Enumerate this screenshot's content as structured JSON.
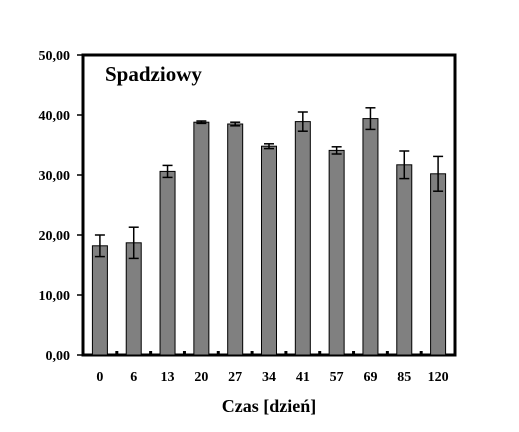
{
  "chart_data": {
    "type": "bar",
    "title": "Spadziowy",
    "xlabel": "Czas [dzień]",
    "ylabel": "",
    "ylim": [
      0,
      50
    ],
    "yticks": [
      "0,00",
      "10,00",
      "20,00",
      "30,00",
      "40,00",
      "50,00"
    ],
    "categories": [
      "0",
      "6",
      "13",
      "20",
      "27",
      "34",
      "41",
      "57",
      "69",
      "85",
      "120"
    ],
    "values": [
      18.2,
      18.7,
      30.6,
      38.8,
      38.5,
      34.8,
      38.9,
      34.1,
      39.4,
      31.7,
      30.2
    ],
    "errors": [
      1.8,
      2.6,
      1.0,
      0.2,
      0.3,
      0.4,
      1.6,
      0.6,
      1.8,
      2.3,
      2.9
    ],
    "grid": false,
    "legend": "none",
    "colors": {
      "bar": "#808080",
      "frame": "#000000"
    }
  }
}
